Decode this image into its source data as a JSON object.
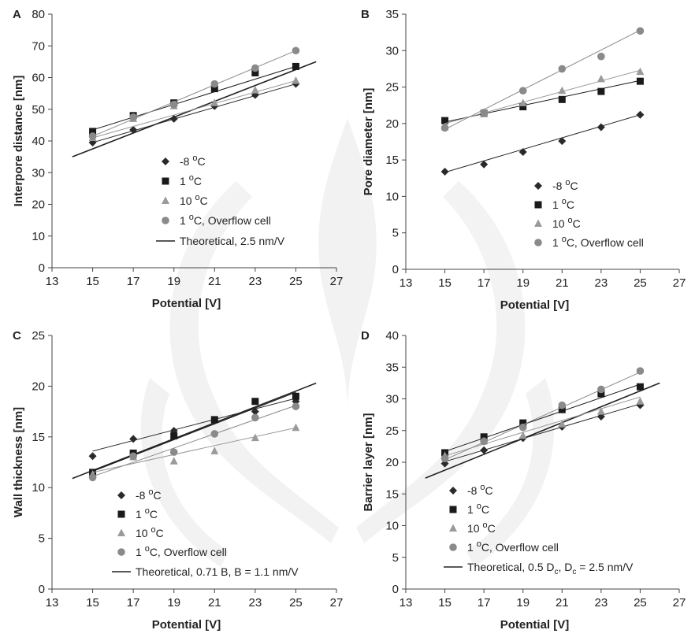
{
  "chart_data": [
    {
      "panel": "A",
      "type": "scatter",
      "ylabel": "Interpore distance [nm]",
      "xlabel": "Potential [V]",
      "xlim": [
        13,
        27
      ],
      "ylim": [
        0,
        80
      ],
      "xticks": [
        13,
        15,
        17,
        19,
        21,
        23,
        25,
        27
      ],
      "yticks": [
        0,
        10,
        20,
        30,
        40,
        50,
        60,
        70,
        80
      ],
      "series": [
        {
          "name": "-8",
          "label_suffix": " °C",
          "marker": "diamond",
          "color": "#2a2a2a",
          "x": [
            15,
            17,
            19,
            21,
            23,
            25
          ],
          "y": [
            39.5,
            43.5,
            47,
            51,
            54.5,
            58
          ],
          "fit": [
            [
              15,
              39.5
            ],
            [
              25,
              58
            ]
          ]
        },
        {
          "name": "1",
          "label_suffix": " °C",
          "marker": "square",
          "color": "#1a1a1a",
          "x": [
            15,
            17,
            19,
            21,
            23,
            25
          ],
          "y": [
            43,
            48,
            52,
            56.5,
            61.5,
            63.5
          ],
          "fit": [
            [
              15,
              43.5
            ],
            [
              25,
              63.5
            ]
          ]
        },
        {
          "name": "10",
          "label_suffix": " °C",
          "marker": "triangle",
          "color": "#9a9a9a",
          "x": [
            15,
            17,
            19,
            21,
            23,
            25
          ],
          "y": [
            41,
            47,
            51,
            52,
            56,
            59
          ],
          "fit": [
            [
              15,
              41
            ],
            [
              25,
              59
            ]
          ]
        },
        {
          "name": "1",
          "label_suffix": " °C, Overflow cell",
          "marker": "circle",
          "color": "#8a8a8a",
          "x": [
            15,
            17,
            19,
            21,
            23,
            25
          ],
          "y": [
            41.5,
            47.5,
            51.5,
            58,
            63,
            68.5
          ],
          "fit": [
            [
              15,
              41.5
            ],
            [
              25,
              68.5
            ]
          ]
        }
      ],
      "theoretical": {
        "name": "Theoretical, 2.5 nm/V",
        "color": "#222222",
        "points": [
          [
            14,
            35
          ],
          [
            26,
            65
          ]
        ]
      },
      "legend": "center-left"
    },
    {
      "panel": "B",
      "type": "scatter",
      "ylabel": "Pore diameter [nm]",
      "xlabel": "Potential [V]",
      "xlim": [
        13,
        27
      ],
      "ylim": [
        0,
        35
      ],
      "xticks": [
        13,
        15,
        17,
        19,
        21,
        23,
        25,
        27
      ],
      "yticks": [
        0,
        5,
        10,
        15,
        20,
        25,
        30,
        35
      ],
      "series": [
        {
          "name": "-8",
          "label_suffix": "°C",
          "marker": "diamond",
          "color": "#2a2a2a",
          "x": [
            15,
            17,
            19,
            21,
            23,
            25
          ],
          "y": [
            13.4,
            14.4,
            16.1,
            17.6,
            19.5,
            21.2
          ],
          "fit": [
            [
              15,
              13.3
            ],
            [
              25,
              21.2
            ]
          ]
        },
        {
          "name": "1",
          "label_suffix": "°C",
          "marker": "square",
          "color": "#1a1a1a",
          "x": [
            15,
            17,
            19,
            21,
            23,
            25
          ],
          "y": [
            20.4,
            21.4,
            22.3,
            23.3,
            24.4,
            25.8
          ],
          "fit": [
            [
              15,
              20.2
            ],
            [
              25,
              25.9
            ]
          ]
        },
        {
          "name": "10",
          "label_suffix": "°C",
          "marker": "triangle",
          "color": "#9a9a9a",
          "x": [
            15,
            17,
            19,
            21,
            23,
            25
          ],
          "y": [
            19.5,
            21.4,
            22.8,
            24.5,
            26.1,
            27.1
          ],
          "fit": [
            [
              15,
              20
            ],
            [
              25,
              27.3
            ]
          ]
        },
        {
          "name": "1",
          "label_suffix": "°C, Overflow cell",
          "marker": "circle",
          "color": "#8a8a8a",
          "x": [
            15,
            17,
            19,
            21,
            23,
            25
          ],
          "y": [
            19.4,
            21.5,
            24.5,
            27.5,
            29.2,
            32.7
          ],
          "fit": [
            [
              15,
              19.2
            ],
            [
              25,
              32.8
            ]
          ]
        }
      ],
      "legend": "center"
    },
    {
      "panel": "C",
      "type": "scatter",
      "ylabel": "Wall thickness [nm]",
      "xlabel": "Potential [V]",
      "xlim": [
        13,
        27
      ],
      "ylim": [
        0,
        25
      ],
      "xticks": [
        13,
        15,
        17,
        19,
        21,
        23,
        25,
        27
      ],
      "yticks": [
        0,
        5,
        10,
        15,
        20,
        25
      ],
      "series": [
        {
          "name": "-8",
          "label_suffix": "°C",
          "marker": "diamond",
          "color": "#2a2a2a",
          "x": [
            15,
            17,
            19,
            21,
            23,
            25
          ],
          "y": [
            13.1,
            14.8,
            15.6,
            16.6,
            17.5,
            18.5
          ],
          "fit": [
            [
              15,
              13.6
            ],
            [
              25,
              18.8
            ]
          ]
        },
        {
          "name": "1",
          "label_suffix": "°C",
          "marker": "square",
          "color": "#1a1a1a",
          "x": [
            15,
            17,
            19,
            21,
            23,
            25
          ],
          "y": [
            11.5,
            13.4,
            15.1,
            16.7,
            18.5,
            19
          ],
          "fit": [
            [
              15,
              11.6
            ],
            [
              25,
              19.4
            ]
          ]
        },
        {
          "name": "10",
          "label_suffix": "°C",
          "marker": "triangle",
          "color": "#9a9a9a",
          "x": [
            15,
            17,
            19,
            21,
            23,
            25
          ],
          "y": [
            11.3,
            13,
            12.6,
            13.6,
            14.9,
            15.9
          ],
          "fit": [
            [
              15,
              11.5
            ],
            [
              25,
              15.9
            ]
          ]
        },
        {
          "name": "1",
          "label_suffix": "°C, Overflow cell",
          "marker": "circle",
          "color": "#8a8a8a",
          "x": [
            15,
            17,
            19,
            21,
            23,
            25
          ],
          "y": [
            11,
            13.1,
            13.5,
            15.3,
            16.9,
            18
          ],
          "fit": [
            [
              15,
              11.1
            ],
            [
              25,
              18.1
            ]
          ]
        }
      ],
      "theoretical": {
        "name": "Theoretical, 0.71 B, B = 1.1 nm/V",
        "color": "#222222",
        "points": [
          [
            14,
            10.9
          ],
          [
            26,
            20.3
          ]
        ]
      },
      "legend": "bottom-left"
    },
    {
      "panel": "D",
      "type": "scatter",
      "ylabel": "Barrier layer [nm]",
      "xlabel": "Potential [V]",
      "xlim": [
        13,
        27
      ],
      "ylim": [
        0,
        40
      ],
      "xticks": [
        13,
        15,
        17,
        19,
        21,
        23,
        25,
        27
      ],
      "yticks": [
        0,
        5,
        10,
        15,
        20,
        25,
        30,
        35,
        40
      ],
      "series": [
        {
          "name": "-8",
          "label_suffix": "°C",
          "marker": "diamond",
          "color": "#2a2a2a",
          "x": [
            15,
            17,
            19,
            21,
            23,
            25
          ],
          "y": [
            19.8,
            21.9,
            23.8,
            25.6,
            27.2,
            29
          ],
          "fit": [
            [
              15,
              20.1
            ],
            [
              25,
              29.2
            ]
          ]
        },
        {
          "name": "1",
          "label_suffix": "°C",
          "marker": "square",
          "color": "#1a1a1a",
          "x": [
            15,
            17,
            19,
            21,
            23,
            25
          ],
          "y": [
            21.5,
            24,
            26.2,
            28.3,
            30.8,
            31.9
          ],
          "fit": [
            [
              15,
              21.7
            ],
            [
              25,
              32.3
            ]
          ]
        },
        {
          "name": "10",
          "label_suffix": "°C",
          "marker": "triangle",
          "color": "#9a9a9a",
          "x": [
            15,
            17,
            19,
            21,
            23,
            25
          ],
          "y": [
            21,
            23.3,
            24.2,
            26,
            28,
            29.6
          ],
          "fit": [
            [
              15,
              21
            ],
            [
              25,
              30.3
            ]
          ]
        },
        {
          "name": "1",
          "label_suffix": "°C, Overflow cell",
          "marker": "circle",
          "color": "#8a8a8a",
          "x": [
            15,
            17,
            19,
            21,
            23,
            25
          ],
          "y": [
            20.6,
            23.3,
            25.5,
            29,
            31.5,
            34.4
          ],
          "fit": [
            [
              15,
              20.4
            ],
            [
              25,
              34.2
            ]
          ]
        }
      ],
      "theoretical": {
        "name": "Theoretical, 0.5 D",
        "name_sub": "c",
        "name_rest": ", D",
        "name_sub2": "c",
        "name_end": " = 2.5 nm/V",
        "color": "#222222",
        "points": [
          [
            14,
            17.5
          ],
          [
            26,
            32.5
          ]
        ]
      },
      "legend": "bottom-left"
    }
  ]
}
